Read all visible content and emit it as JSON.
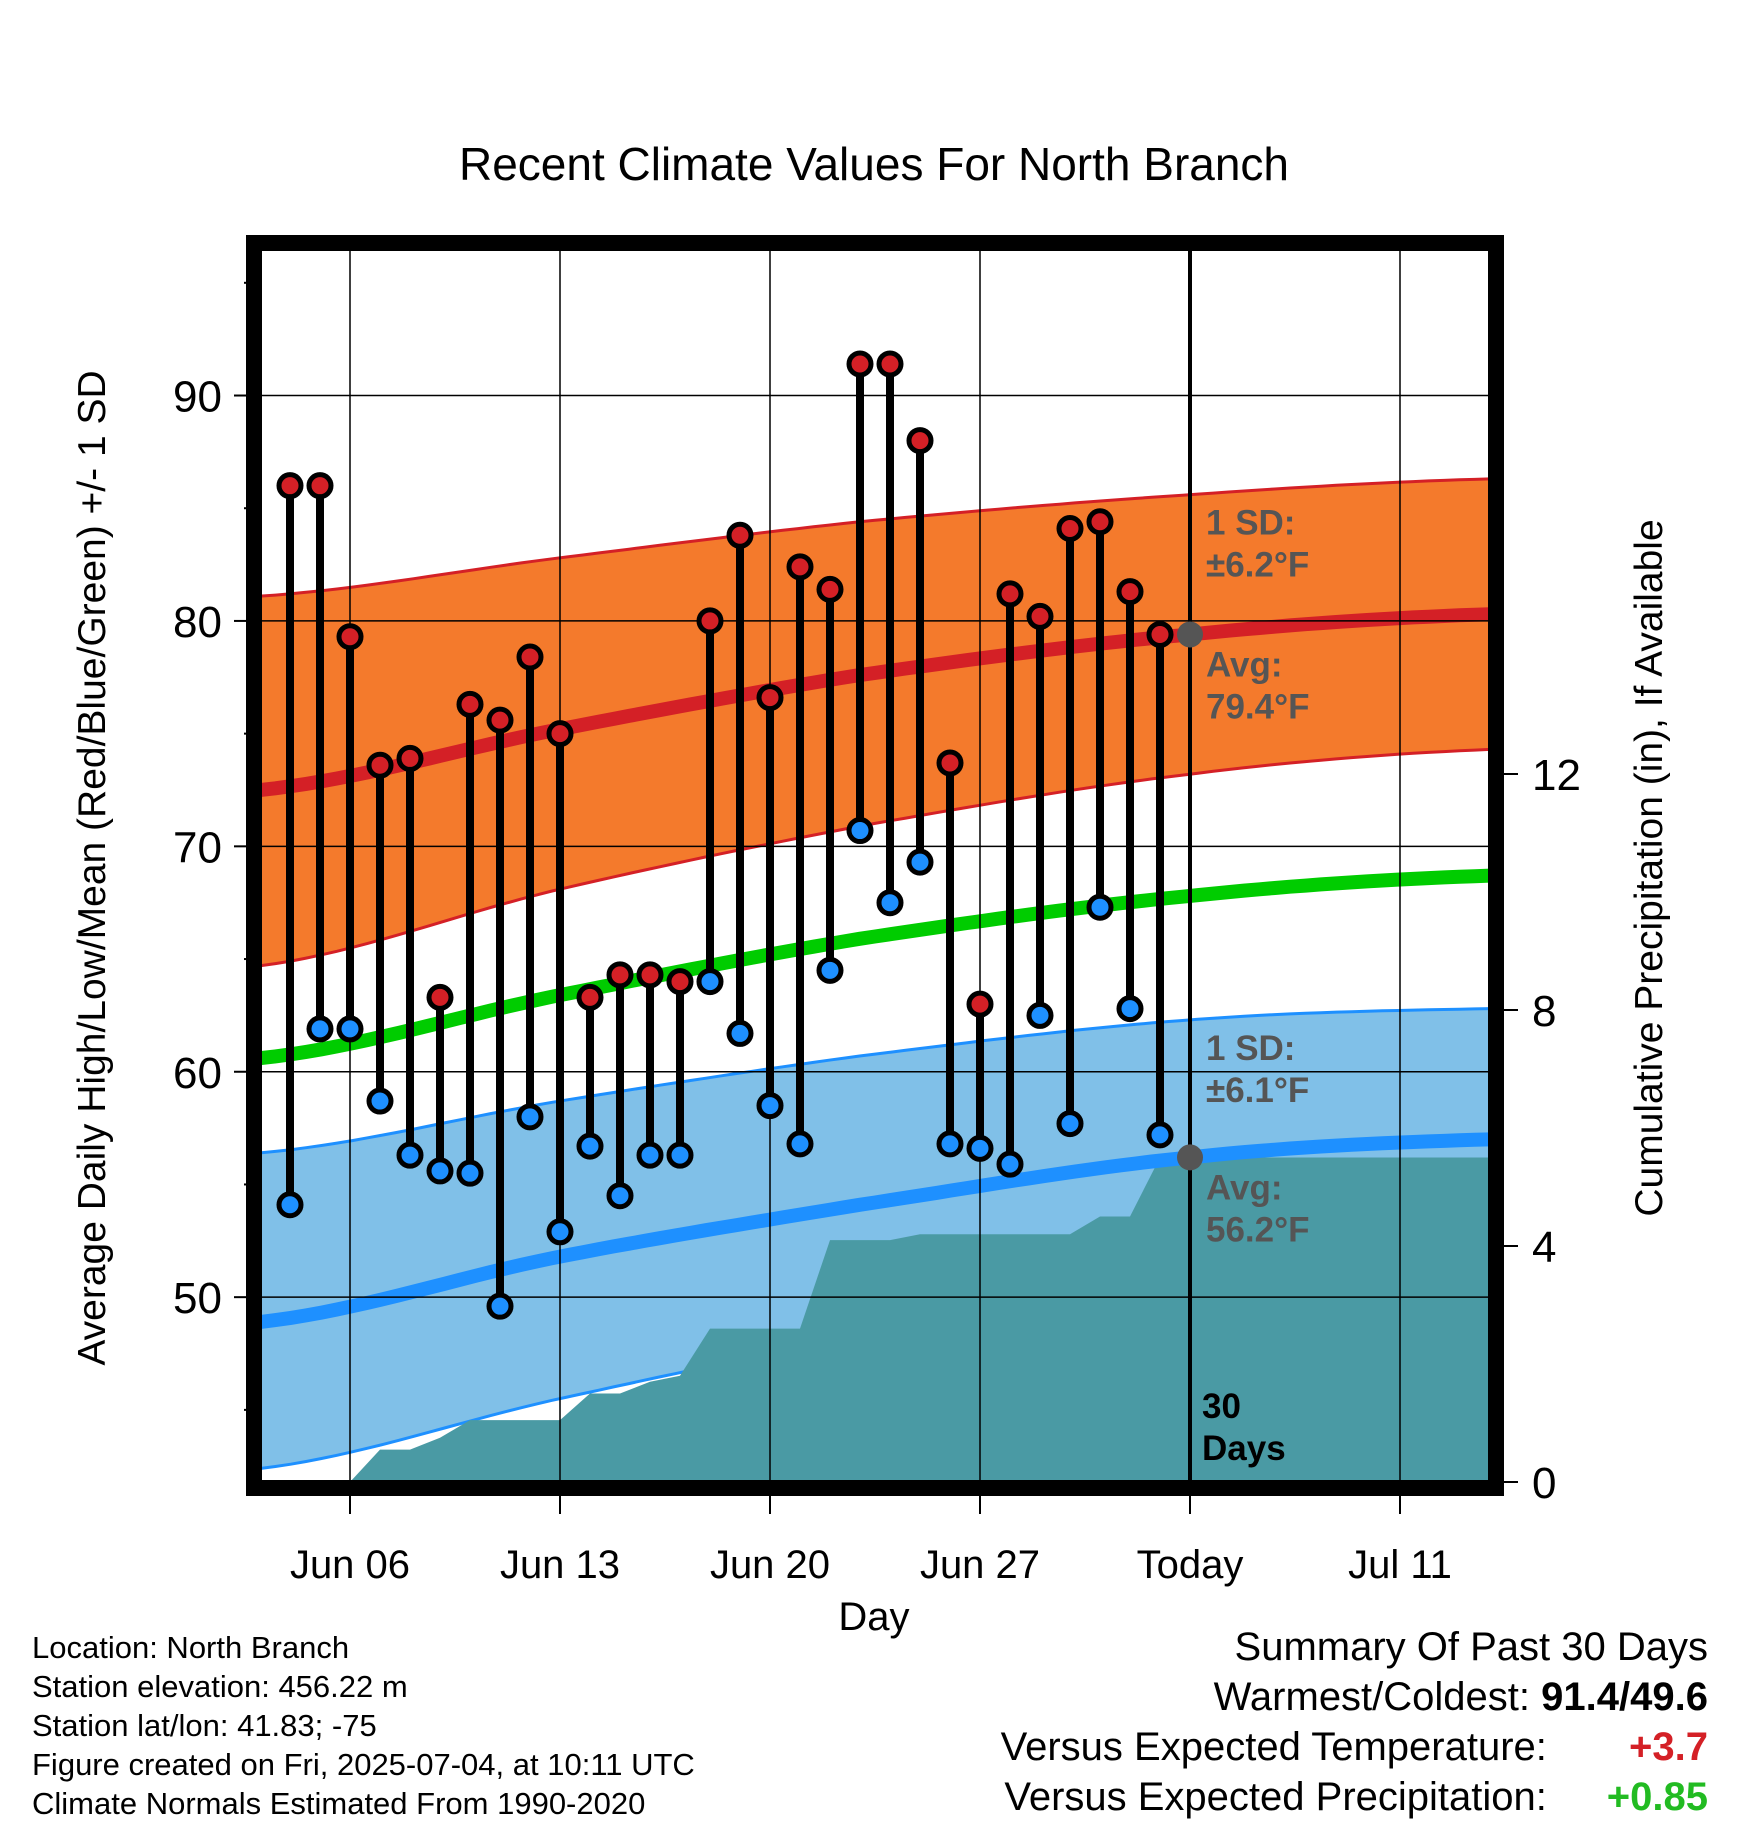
{
  "chart_data": {
    "type": "line",
    "title": "Recent Climate Values For North Branch",
    "xlabel": "Day",
    "ylabel_left": "Average Daily High/Low/Mean (Red/Blue/Green) +/- 1 SD",
    "ylabel_right": "Cumulative Precipitation (in), If Available",
    "x_range": [
      "Jun 03",
      "Jul 14"
    ],
    "x_tick_labels": [
      {
        "date": "Jun 06",
        "label": "Jun 06"
      },
      {
        "date": "Jun 13",
        "label": "Jun 13"
      },
      {
        "date": "Jun 20",
        "label": "Jun 20"
      },
      {
        "date": "Jun 27",
        "label": "Jun 27"
      },
      {
        "date": "Jul 04",
        "label": "Today"
      },
      {
        "date": "Jul 11",
        "label": "Jul 11"
      }
    ],
    "ylim_left": [
      41.8,
      96.5
    ],
    "y_ticks_left": [
      50,
      60,
      70,
      80,
      90
    ],
    "ylim_right": [
      0,
      20.9
    ],
    "y_ticks_right": [
      0,
      4,
      8,
      12
    ],
    "grid": true,
    "today_marker": {
      "date": "Jul 04",
      "label": "30\nDays"
    },
    "observed": {
      "dates": [
        "Jun 04",
        "Jun 05",
        "Jun 06",
        "Jun 07",
        "Jun 08",
        "Jun 09",
        "Jun 10",
        "Jun 11",
        "Jun 12",
        "Jun 13",
        "Jun 14",
        "Jun 15",
        "Jun 16",
        "Jun 17",
        "Jun 18",
        "Jun 19",
        "Jun 20",
        "Jun 21",
        "Jun 22",
        "Jun 23",
        "Jun 24",
        "Jun 25",
        "Jun 26",
        "Jun 27",
        "Jun 28",
        "Jun 29",
        "Jun 30",
        "Jul 01",
        "Jul 02",
        "Jul 03"
      ],
      "high": [
        86.0,
        86.0,
        79.3,
        73.6,
        73.9,
        63.3,
        76.3,
        75.6,
        78.4,
        75.0,
        63.3,
        64.3,
        64.3,
        64.0,
        80.0,
        83.8,
        76.6,
        82.4,
        81.4,
        91.4,
        91.4,
        88.0,
        73.7,
        63.0,
        81.2,
        80.2,
        84.1,
        84.4,
        81.3,
        79.4
      ],
      "low": [
        54.1,
        61.9,
        61.9,
        58.7,
        56.3,
        55.6,
        55.5,
        49.6,
        58.0,
        52.9,
        56.7,
        54.5,
        56.3,
        56.3,
        64.0,
        61.7,
        58.5,
        56.8,
        64.5,
        70.7,
        67.5,
        69.3,
        56.8,
        56.6,
        55.9,
        62.5,
        57.7,
        67.3,
        62.8,
        57.2
      ]
    },
    "normals": {
      "dates": [
        "Jun 03",
        "Jun 13",
        "Jun 23",
        "Jul 04",
        "Jul 14"
      ],
      "high_mean": [
        72.5,
        75.2,
        77.6,
        79.4,
        80.3
      ],
      "high_upper": [
        81.1,
        82.8,
        84.4,
        85.6,
        86.3
      ],
      "high_lower": [
        64.7,
        68.1,
        70.9,
        73.2,
        74.3
      ],
      "mean": [
        60.6,
        63.4,
        65.9,
        67.8,
        68.7
      ],
      "low_mean": [
        48.9,
        51.8,
        54.1,
        56.2,
        57.0
      ],
      "low_upper": [
        56.4,
        58.7,
        60.7,
        62.3,
        62.8
      ],
      "low_lower": [
        42.4,
        45.5,
        48.2,
        50.0,
        51.0
      ]
    },
    "precipitation": {
      "dates": [
        "Jun 04",
        "Jun 05",
        "Jun 06",
        "Jun 07",
        "Jun 08",
        "Jun 09",
        "Jun 10",
        "Jun 11",
        "Jun 12",
        "Jun 13",
        "Jun 14",
        "Jun 15",
        "Jun 16",
        "Jun 17",
        "Jun 18",
        "Jun 19",
        "Jun 20",
        "Jun 21",
        "Jun 22",
        "Jun 23",
        "Jun 24",
        "Jun 25",
        "Jun 26",
        "Jun 27",
        "Jun 28",
        "Jun 29",
        "Jun 30",
        "Jul 01",
        "Jul 02",
        "Jul 03",
        "Jul 14"
      ],
      "cumulative": [
        0.0,
        0.0,
        0.0,
        0.55,
        0.55,
        0.75,
        1.05,
        1.05,
        1.05,
        1.05,
        1.5,
        1.5,
        1.7,
        1.8,
        2.6,
        2.6,
        2.6,
        2.6,
        4.1,
        4.1,
        4.1,
        4.2,
        4.2,
        4.2,
        4.2,
        4.2,
        4.2,
        4.5,
        4.5,
        5.5,
        5.5
      ]
    },
    "annotations": {
      "high_sd": {
        "label": "1 SD:",
        "value": "±6.2°F"
      },
      "high_avg": {
        "label": "Avg:",
        "value": "79.4°F"
      },
      "low_sd": {
        "label": "1 SD:",
        "value": "±6.1°F"
      },
      "low_avg": {
        "label": "Avg:",
        "value": "56.2°F"
      }
    },
    "colors": {
      "high_band": "#f47a2c",
      "high_line": "#d42026",
      "mean_line": "#00cc00",
      "low_band": "#80c0e8",
      "low_line": "#1e90ff",
      "precip": "#4a9aa4",
      "high_dot": "#d42026",
      "low_dot": "#1e90ff",
      "avg_dot": "#555555",
      "annotation_text": "#555555"
    }
  },
  "footer": {
    "location": "Location: North Branch",
    "elevation": "Station elevation: 456.22 m",
    "latlon": "Station lat/lon: 41.83; -75",
    "created": "Figure created on Fri, 2025-07-04, at 10:11 UTC",
    "normals": "Climate Normals Estimated From 1990-2020"
  },
  "summary": {
    "title": "Summary Of Past 30 Days",
    "warm_cold_label": "Warmest/Coldest:",
    "warmest": "91.4",
    "coldest": "49.6",
    "temp_label": "Versus Expected Temperature:",
    "temp_value": "+3.7",
    "temp_color": "#d42026",
    "precip_label": "Versus Expected Precipitation:",
    "precip_value": "+0.85",
    "precip_color": "#22bb22"
  }
}
